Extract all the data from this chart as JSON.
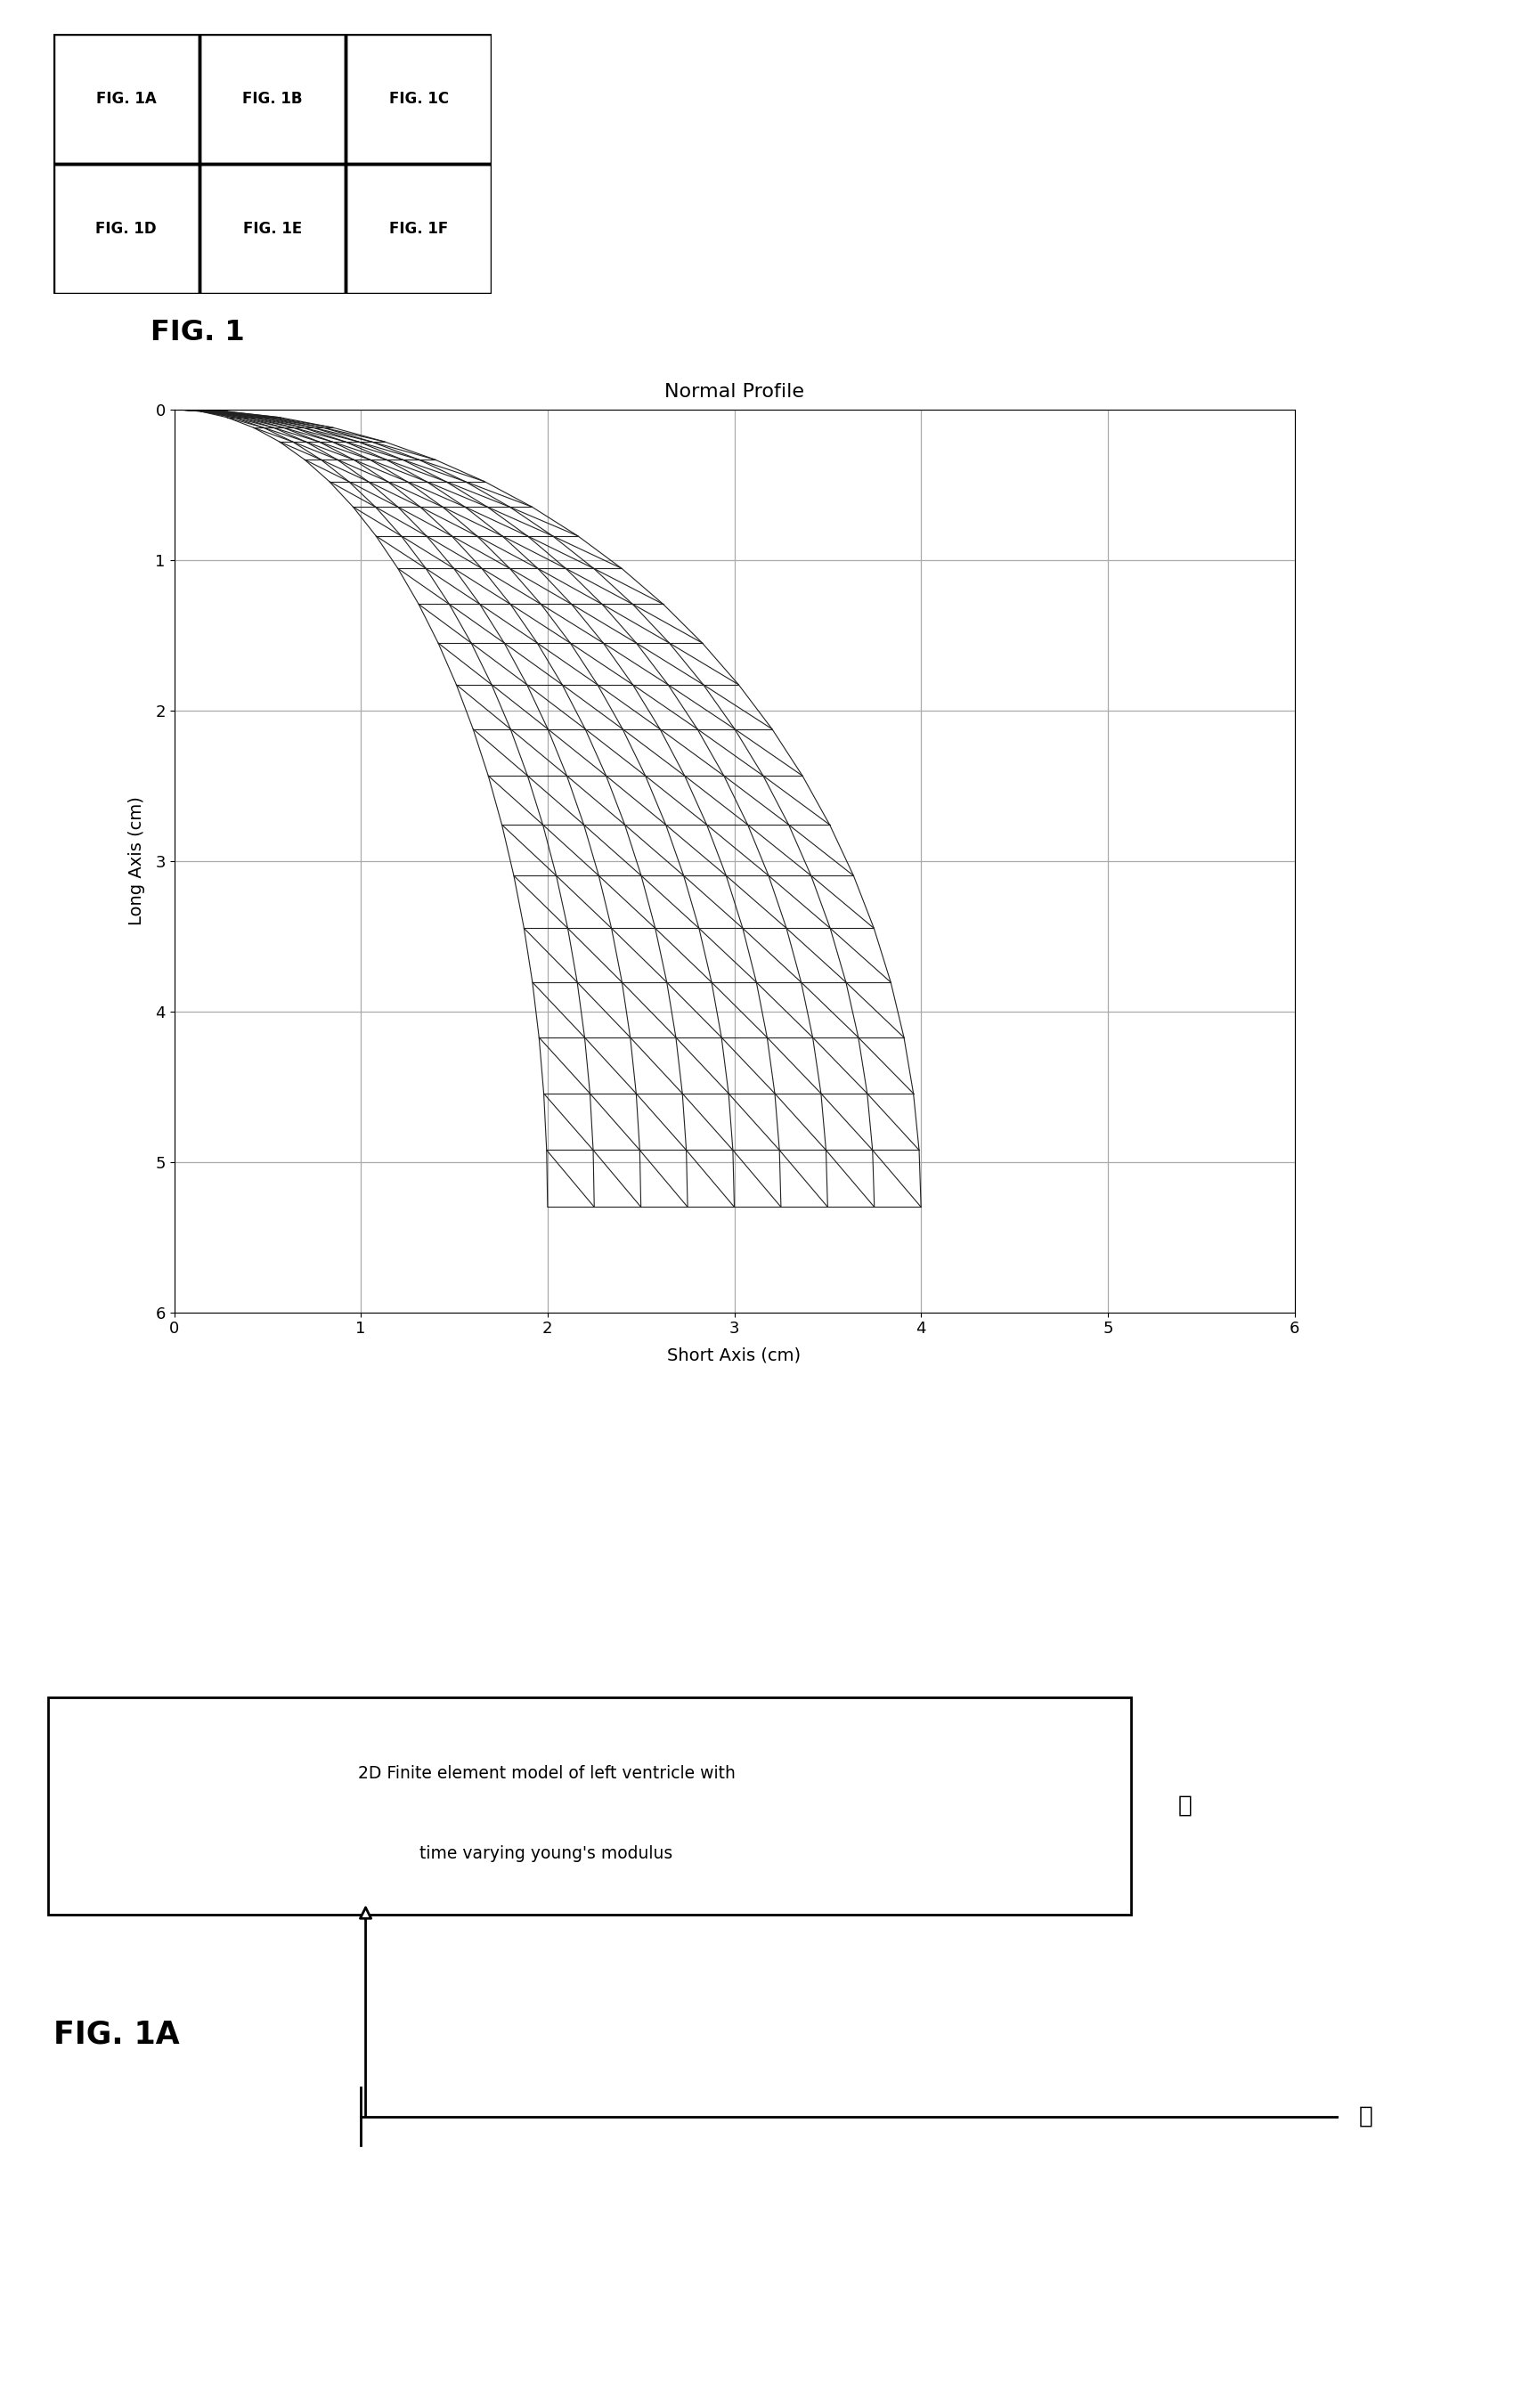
{
  "fig1_labels": [
    [
      "FIG. 1A",
      "FIG. 1B",
      "FIG. 1C"
    ],
    [
      "FIG. 1D",
      "FIG. 1E",
      "FIG. 1F"
    ]
  ],
  "fig1_caption": "FIG. 1",
  "plot_title": "Normal Profile",
  "xlabel": "Short Axis (cm)",
  "ylabel": "Long Axis (cm)",
  "xlim": [
    0,
    6
  ],
  "ylim": [
    6,
    0
  ],
  "xticks": [
    0,
    1,
    2,
    3,
    4,
    5,
    6
  ],
  "yticks": [
    0,
    1,
    2,
    3,
    4,
    5,
    6
  ],
  "fig1a_caption": "FIG. 1A",
  "box_text_line1": "2D Finite element model of left ventricle with",
  "box_text_line2": "time varying young's modulus",
  "label_A": "Ⓐ",
  "label_B": "Ⓑ",
  "bg_color": "#ffffff",
  "grid_color": "#aaaaaa",
  "mesh_color": "#222222",
  "a_out": 4.0,
  "b_out": 5.3,
  "a_in": 2.0,
  "b_in": 5.3,
  "n_theta": 22,
  "n_r": 8
}
